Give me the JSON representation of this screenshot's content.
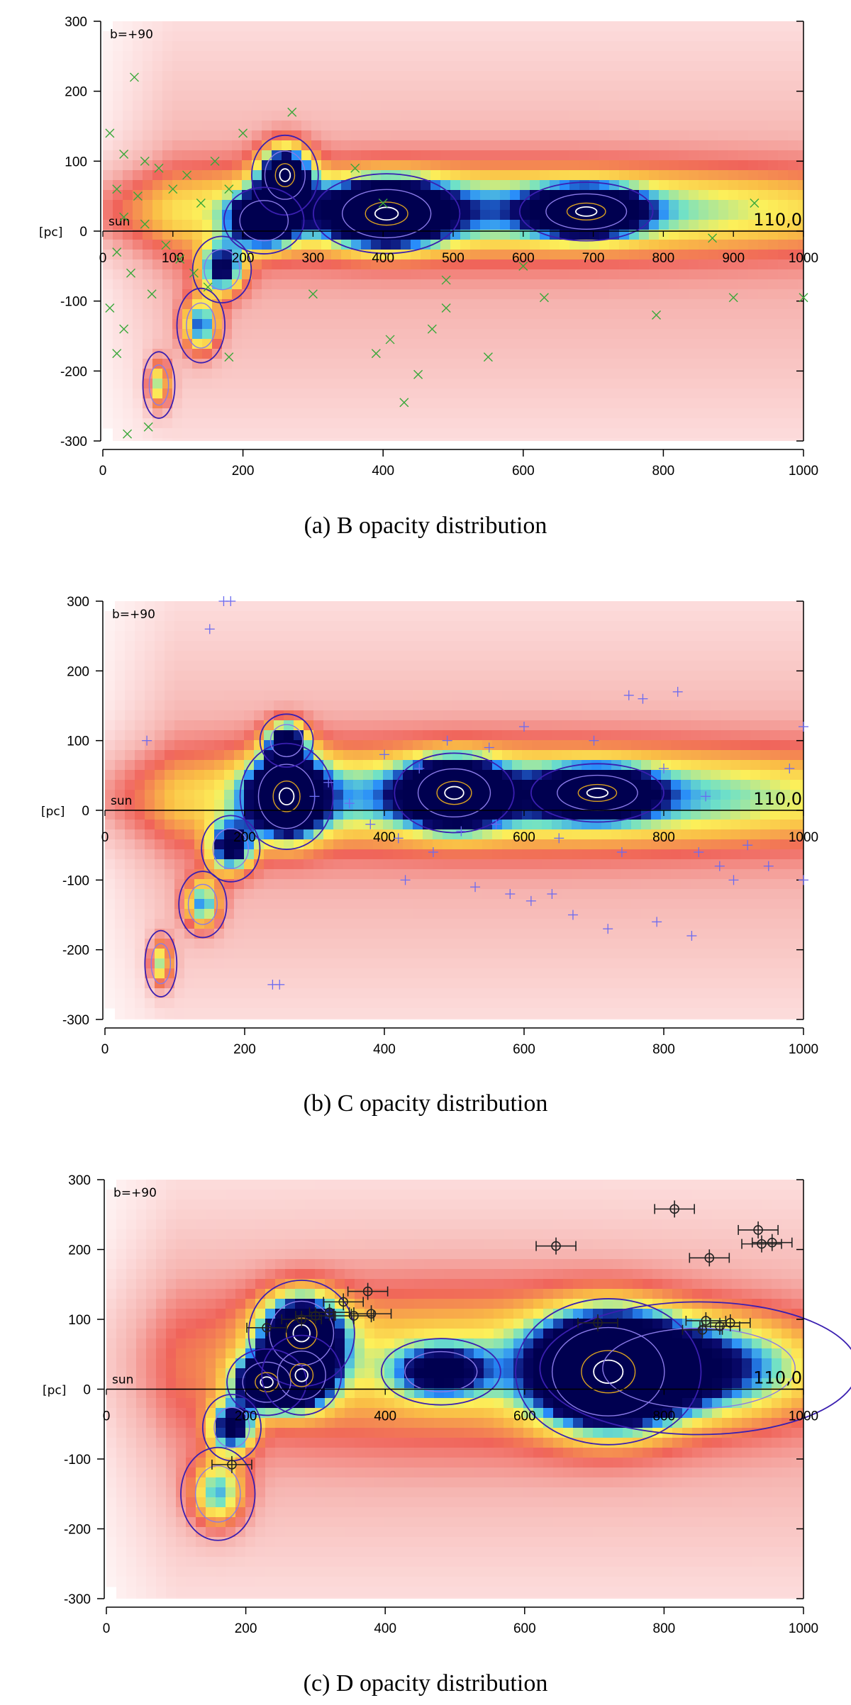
{
  "chart_data": [
    {
      "type": "heatmap",
      "title": "",
      "caption": "(a) B opacity distribution",
      "corner_label": "b=+90",
      "sun_label": "sun",
      "direction_label": "110,0",
      "unit_label": "[pc]",
      "xlim": [
        0,
        1000
      ],
      "ylim": [
        -300,
        300
      ],
      "x_ticks_bottom": [
        "0",
        "200",
        "400",
        "600",
        "800",
        "1000"
      ],
      "x_ticks_inner": [
        "0",
        "100",
        "200",
        "300",
        "400",
        "500",
        "600",
        "700",
        "800",
        "900",
        "1000"
      ],
      "y_ticks": [
        "300",
        "200",
        "100",
        "0",
        "-100",
        "-200",
        "-300"
      ],
      "marker": "x",
      "marker_color": "#3aa83a",
      "blobs": [
        {
          "x": 260,
          "y": 80,
          "sx": 25,
          "sy": 30,
          "w": 1.0
        },
        {
          "x": 230,
          "y": 15,
          "sx": 30,
          "sy": 25,
          "w": 0.9
        },
        {
          "x": 405,
          "y": 25,
          "sx": 55,
          "sy": 30,
          "w": 1.1
        },
        {
          "x": 690,
          "y": 28,
          "sx": 50,
          "sy": 22,
          "w": 1.0
        },
        {
          "x": 170,
          "y": -55,
          "sx": 22,
          "sy": 25,
          "w": 0.75
        },
        {
          "x": 140,
          "y": -135,
          "sx": 18,
          "sy": 28,
          "w": 0.7
        },
        {
          "x": 80,
          "y": -220,
          "sx": 12,
          "sy": 25,
          "w": 0.6
        },
        {
          "x": 550,
          "y": 30,
          "sx": 450,
          "sy": 45,
          "w": 0.6
        }
      ],
      "scatter": [
        {
          "x": 45,
          "y": 220
        },
        {
          "x": 10,
          "y": 140
        },
        {
          "x": 30,
          "y": 110
        },
        {
          "x": 60,
          "y": 100
        },
        {
          "x": 80,
          "y": 90
        },
        {
          "x": 20,
          "y": 60
        },
        {
          "x": 50,
          "y": 50
        },
        {
          "x": 100,
          "y": 60
        },
        {
          "x": 120,
          "y": 80
        },
        {
          "x": 140,
          "y": 40
        },
        {
          "x": 160,
          "y": 100
        },
        {
          "x": 180,
          "y": 60
        },
        {
          "x": 200,
          "y": 140
        },
        {
          "x": 30,
          "y": 20
        },
        {
          "x": 60,
          "y": 10
        },
        {
          "x": 90,
          "y": -20
        },
        {
          "x": 110,
          "y": -40
        },
        {
          "x": 130,
          "y": -60
        },
        {
          "x": 150,
          "y": -80
        },
        {
          "x": 20,
          "y": -30
        },
        {
          "x": 40,
          "y": -60
        },
        {
          "x": 70,
          "y": -90
        },
        {
          "x": 10,
          "y": -110
        },
        {
          "x": 30,
          "y": -140
        },
        {
          "x": 20,
          "y": -175
        },
        {
          "x": 35,
          "y": -290
        },
        {
          "x": 65,
          "y": -280
        },
        {
          "x": 180,
          "y": -180
        },
        {
          "x": 300,
          "y": -90
        },
        {
          "x": 390,
          "y": -175
        },
        {
          "x": 410,
          "y": -155
        },
        {
          "x": 430,
          "y": -245
        },
        {
          "x": 450,
          "y": -205
        },
        {
          "x": 470,
          "y": -140
        },
        {
          "x": 490,
          "y": -110
        },
        {
          "x": 550,
          "y": -180
        },
        {
          "x": 630,
          "y": -95
        },
        {
          "x": 790,
          "y": -120
        },
        {
          "x": 900,
          "y": -95
        },
        {
          "x": 1000,
          "y": -95
        },
        {
          "x": 930,
          "y": 40
        },
        {
          "x": 270,
          "y": 170
        },
        {
          "x": 360,
          "y": 90
        },
        {
          "x": 400,
          "y": 40
        },
        {
          "x": 490,
          "y": -70
        },
        {
          "x": 600,
          "y": -50
        },
        {
          "x": 870,
          "y": -10
        }
      ]
    },
    {
      "type": "heatmap",
      "title": "",
      "caption": "(b) C opacity distribution",
      "corner_label": "b=+90",
      "sun_label": "sun",
      "direction_label": "110,0",
      "unit_label": "[pc]",
      "xlim": [
        0,
        1000
      ],
      "ylim": [
        -300,
        300
      ],
      "x_ticks_bottom": [
        "0",
        "200",
        "400",
        "600",
        "800",
        "1000"
      ],
      "x_ticks_inner": [
        "0",
        "200",
        "400",
        "600",
        "800",
        "1000"
      ],
      "y_ticks": [
        "300",
        "200",
        "100",
        "0",
        "-100",
        "-200",
        "-300"
      ],
      "marker": "plus",
      "marker_color": "#6b6bf0",
      "blobs": [
        {
          "x": 260,
          "y": 20,
          "sx": 35,
          "sy": 40,
          "w": 1.1
        },
        {
          "x": 260,
          "y": 100,
          "sx": 20,
          "sy": 20,
          "w": 0.8
        },
        {
          "x": 500,
          "y": 25,
          "sx": 45,
          "sy": 30,
          "w": 1.1
        },
        {
          "x": 705,
          "y": 25,
          "sx": 50,
          "sy": 22,
          "w": 1.0
        },
        {
          "x": 180,
          "y": -55,
          "sx": 22,
          "sy": 25,
          "w": 0.75
        },
        {
          "x": 140,
          "y": -135,
          "sx": 18,
          "sy": 25,
          "w": 0.65
        },
        {
          "x": 80,
          "y": -220,
          "sx": 12,
          "sy": 25,
          "w": 0.6
        },
        {
          "x": 600,
          "y": 20,
          "sx": 420,
          "sy": 50,
          "w": 0.65
        }
      ],
      "scatter": [
        {
          "x": 170,
          "y": 300
        },
        {
          "x": 180,
          "y": 300
        },
        {
          "x": 150,
          "y": 260
        },
        {
          "x": 60,
          "y": 100
        },
        {
          "x": 240,
          "y": -250
        },
        {
          "x": 250,
          "y": -250
        },
        {
          "x": 300,
          "y": 20
        },
        {
          "x": 320,
          "y": 40
        },
        {
          "x": 350,
          "y": 10
        },
        {
          "x": 380,
          "y": -20
        },
        {
          "x": 400,
          "y": 80
        },
        {
          "x": 420,
          "y": -40
        },
        {
          "x": 450,
          "y": 60
        },
        {
          "x": 470,
          "y": -60
        },
        {
          "x": 490,
          "y": 100
        },
        {
          "x": 510,
          "y": -30
        },
        {
          "x": 530,
          "y": -110
        },
        {
          "x": 560,
          "y": -20
        },
        {
          "x": 580,
          "y": -120
        },
        {
          "x": 600,
          "y": 120
        },
        {
          "x": 610,
          "y": -130
        },
        {
          "x": 640,
          "y": -120
        },
        {
          "x": 670,
          "y": -150
        },
        {
          "x": 700,
          "y": 100
        },
        {
          "x": 720,
          "y": -170
        },
        {
          "x": 750,
          "y": 165
        },
        {
          "x": 770,
          "y": 160
        },
        {
          "x": 790,
          "y": -160
        },
        {
          "x": 800,
          "y": 60
        },
        {
          "x": 820,
          "y": 170
        },
        {
          "x": 840,
          "y": -180
        },
        {
          "x": 850,
          "y": -60
        },
        {
          "x": 880,
          "y": -80
        },
        {
          "x": 920,
          "y": -50
        },
        {
          "x": 950,
          "y": -80
        },
        {
          "x": 980,
          "y": 60
        },
        {
          "x": 1000,
          "y": 120
        },
        {
          "x": 1000,
          "y": -100
        },
        {
          "x": 430,
          "y": -100
        },
        {
          "x": 550,
          "y": 90
        },
        {
          "x": 650,
          "y": -40
        },
        {
          "x": 740,
          "y": -60
        },
        {
          "x": 860,
          "y": 20
        },
        {
          "x": 900,
          "y": -100
        }
      ]
    },
    {
      "type": "heatmap",
      "title": "",
      "caption": "(c) D opacity distribution",
      "corner_label": "b=+90",
      "sun_label": "sun",
      "direction_label": "110,0",
      "unit_label": "[pc]",
      "xlim": [
        0,
        1000
      ],
      "ylim": [
        -300,
        300
      ],
      "x_ticks_bottom": [
        "0",
        "200",
        "400",
        "600",
        "800",
        "1000"
      ],
      "x_ticks_inner": [
        "0",
        "200",
        "400",
        "600",
        "800",
        "1000"
      ],
      "y_ticks": [
        "300",
        "200",
        "100",
        "0",
        "-100",
        "-200",
        "-300"
      ],
      "marker": "errorbar",
      "marker_color": "#222222",
      "blobs": [
        {
          "x": 280,
          "y": 80,
          "sx": 40,
          "sy": 40,
          "w": 1.0
        },
        {
          "x": 230,
          "y": 10,
          "sx": 30,
          "sy": 25,
          "w": 1.0
        },
        {
          "x": 280,
          "y": 20,
          "sx": 30,
          "sy": 30,
          "w": 1.0
        },
        {
          "x": 720,
          "y": 25,
          "sx": 70,
          "sy": 55,
          "w": 1.2
        },
        {
          "x": 480,
          "y": 25,
          "sx": 45,
          "sy": 25,
          "w": 0.55
        },
        {
          "x": 180,
          "y": -55,
          "sx": 22,
          "sy": 25,
          "w": 0.75
        },
        {
          "x": 160,
          "y": -150,
          "sx": 28,
          "sy": 35,
          "w": 0.6
        },
        {
          "x": 850,
          "y": 30,
          "sx": 120,
          "sy": 50,
          "w": 0.6
        },
        {
          "x": 500,
          "y": 40,
          "sx": 300,
          "sy": 80,
          "w": 0.4
        }
      ],
      "scatter": [
        {
          "x": 230,
          "y": 88
        },
        {
          "x": 280,
          "y": 100
        },
        {
          "x": 300,
          "y": 105
        },
        {
          "x": 320,
          "y": 110
        },
        {
          "x": 340,
          "y": 125
        },
        {
          "x": 355,
          "y": 105
        },
        {
          "x": 375,
          "y": 140
        },
        {
          "x": 380,
          "y": 108
        },
        {
          "x": 180,
          "y": -108
        },
        {
          "x": 645,
          "y": 205
        },
        {
          "x": 705,
          "y": 95
        },
        {
          "x": 815,
          "y": 258
        },
        {
          "x": 865,
          "y": 188
        },
        {
          "x": 855,
          "y": 85
        },
        {
          "x": 860,
          "y": 98
        },
        {
          "x": 880,
          "y": 90
        },
        {
          "x": 895,
          "y": 95
        },
        {
          "x": 935,
          "y": 228
        },
        {
          "x": 940,
          "y": 208
        },
        {
          "x": 955,
          "y": 210
        }
      ]
    }
  ]
}
